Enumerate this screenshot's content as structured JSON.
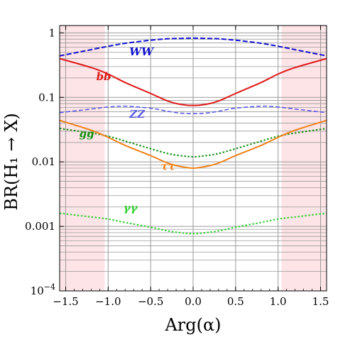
{
  "chart_data": {
    "type": "line",
    "xlabel": "Arg(α)",
    "ylabel": "BR(H₁ → X)",
    "xlim": [
      -1.571,
      1.571
    ],
    "ylim": [
      0.0001,
      1.3
    ],
    "y_scale": "log",
    "grid": true,
    "legend": "none",
    "x_ticks": [
      {
        "v": -1.5,
        "label": "−1.5"
      },
      {
        "v": -1.0,
        "label": "−1.0"
      },
      {
        "v": -0.5,
        "label": "−0.5"
      },
      {
        "v": 0.0,
        "label": "0.0"
      },
      {
        "v": 0.5,
        "label": "0.5"
      },
      {
        "v": 1.0,
        "label": "1.0"
      },
      {
        "v": 1.5,
        "label": "1.5"
      }
    ],
    "y_ticks": [
      {
        "v": 1,
        "label": "1",
        "sup": ""
      },
      {
        "v": 0.1,
        "label": "0.1",
        "sup": ""
      },
      {
        "v": 0.01,
        "label": "0.01",
        "sup": ""
      },
      {
        "v": 0.001,
        "label": "0.001",
        "sup": ""
      },
      {
        "v": 0.0001,
        "label": "10",
        "sup": "−4"
      }
    ],
    "excluded_regions": [
      {
        "x": [
          -1.571,
          -1.04
        ],
        "color": "#fde4e6"
      },
      {
        "x": [
          1.04,
          1.571
        ],
        "color": "#fde4e6"
      }
    ],
    "x": [
      -1.571,
      -1.2,
      -1.0,
      -0.8,
      -0.5,
      -0.3,
      -0.15,
      0.0,
      0.15,
      0.3,
      0.5,
      0.8,
      1.0,
      1.2,
      1.571
    ],
    "series": [
      {
        "name": "WW",
        "color": "#1010d0",
        "dash": "7,3",
        "width": 2,
        "values": [
          0.44,
          0.55,
          0.62,
          0.69,
          0.77,
          0.81,
          0.82,
          0.83,
          0.82,
          0.81,
          0.77,
          0.69,
          0.62,
          0.55,
          0.44
        ]
      },
      {
        "name": "bb",
        "color": "#e01818",
        "dash": "",
        "width": 2,
        "values": [
          0.4,
          0.29,
          0.23,
          0.17,
          0.115,
          0.088,
          0.078,
          0.075,
          0.078,
          0.088,
          0.115,
          0.17,
          0.23,
          0.29,
          0.4
        ]
      },
      {
        "name": "ZZ",
        "color": "#5a5ae8",
        "dash": "6,3",
        "width": 1.6,
        "values": [
          0.058,
          0.066,
          0.071,
          0.073,
          0.068,
          0.061,
          0.057,
          0.056,
          0.057,
          0.061,
          0.068,
          0.073,
          0.071,
          0.066,
          0.058
        ]
      },
      {
        "name": "gg",
        "color": "#109010",
        "dash": "2.5,2.5",
        "width": 2,
        "values": [
          0.033,
          0.028,
          0.025,
          0.021,
          0.016,
          0.0135,
          0.0125,
          0.012,
          0.0125,
          0.0135,
          0.016,
          0.021,
          0.025,
          0.028,
          0.033
        ]
      },
      {
        "name": "ττ",
        "color": "#f08018",
        "dash": "",
        "width": 2,
        "values": [
          0.044,
          0.031,
          0.024,
          0.018,
          0.0125,
          0.0096,
          0.0085,
          0.008,
          0.0085,
          0.0096,
          0.0125,
          0.018,
          0.024,
          0.031,
          0.044
        ]
      },
      {
        "name": "γγ",
        "color": "#30d030",
        "dash": "2.5,2.5",
        "width": 2,
        "values": [
          0.0016,
          0.0014,
          0.0013,
          0.00115,
          0.00097,
          0.00085,
          0.0008,
          0.00077,
          0.0008,
          0.00085,
          0.00097,
          0.00115,
          0.0013,
          0.0014,
          0.0016
        ]
      }
    ],
    "labels": [
      {
        "text": "WW",
        "color": "#1010d0",
        "x": -0.75,
        "y": 0.45
      },
      {
        "text": "bb",
        "color": "#e01818",
        "x": -1.14,
        "y": 0.185
      },
      {
        "text": "ZZ",
        "color": "#5a5ae8",
        "x": -0.75,
        "y": 0.048
      },
      {
        "text": "gg",
        "color": "#109010",
        "x": -1.34,
        "y": 0.024
      },
      {
        "text": "ττ",
        "color": "#f08018",
        "x": -0.38,
        "y": 0.0075
      },
      {
        "text": "γγ",
        "color": "#30d030",
        "x": -0.82,
        "y": 0.0017
      }
    ]
  }
}
